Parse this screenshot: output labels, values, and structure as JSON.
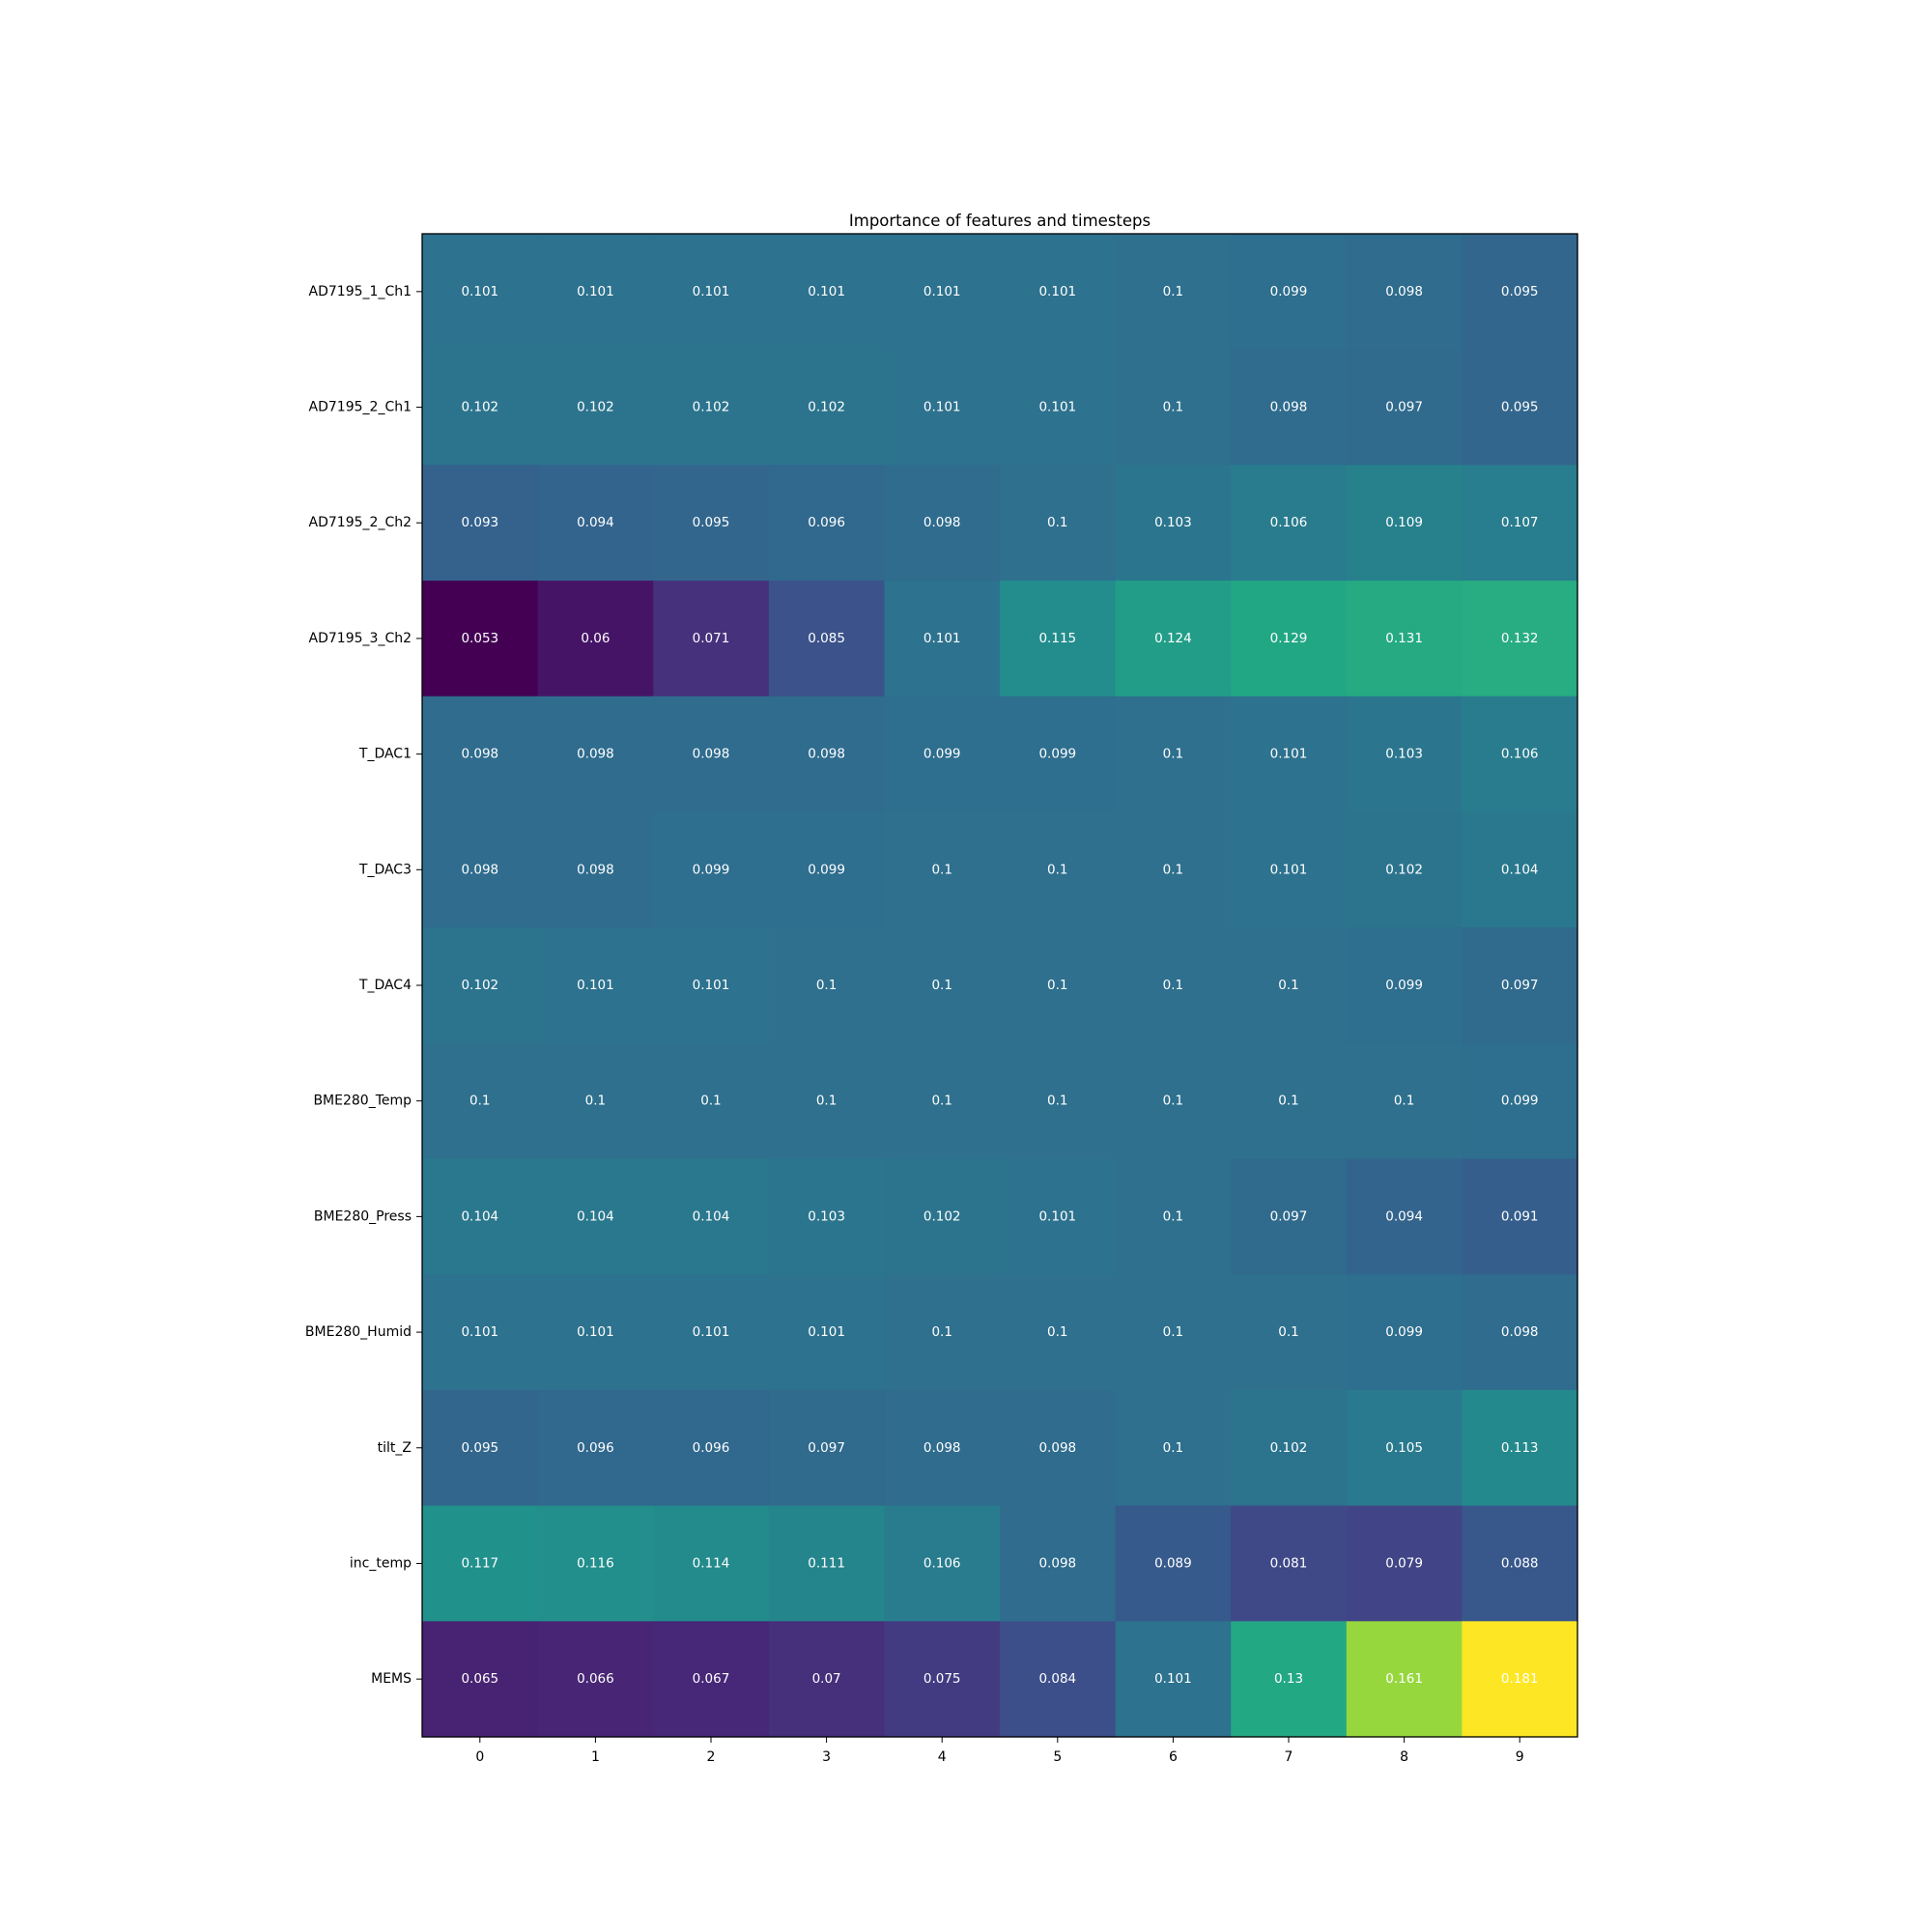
{
  "chart_data": {
    "type": "heatmap",
    "title": "Importance of features and timesteps",
    "xlabel": "",
    "ylabel": "",
    "colormap": "viridis",
    "color_range": [
      0.053,
      0.181
    ],
    "grid": false,
    "x_categories": [
      "0",
      "1",
      "2",
      "3",
      "4",
      "5",
      "6",
      "7",
      "8",
      "9"
    ],
    "y_categories": [
      "AD7195_1_Ch1",
      "AD7195_2_Ch1",
      "AD7195_2_Ch2",
      "AD7195_3_Ch2",
      "T_DAC1",
      "T_DAC3",
      "T_DAC4",
      "BME280_Temp",
      "BME280_Press",
      "BME280_Humid",
      "tilt_Z",
      "inc_temp",
      "MEMS"
    ],
    "values": [
      [
        0.101,
        0.101,
        0.101,
        0.101,
        0.101,
        0.101,
        0.1,
        0.099,
        0.098,
        0.095
      ],
      [
        0.102,
        0.102,
        0.102,
        0.102,
        0.101,
        0.101,
        0.1,
        0.098,
        0.097,
        0.095
      ],
      [
        0.093,
        0.094,
        0.095,
        0.096,
        0.098,
        0.1,
        0.103,
        0.106,
        0.109,
        0.107
      ],
      [
        0.053,
        0.06,
        0.071,
        0.085,
        0.101,
        0.115,
        0.124,
        0.129,
        0.131,
        0.132
      ],
      [
        0.098,
        0.098,
        0.098,
        0.098,
        0.099,
        0.099,
        0.1,
        0.101,
        0.103,
        0.106
      ],
      [
        0.098,
        0.098,
        0.099,
        0.099,
        0.1,
        0.1,
        0.1,
        0.101,
        0.102,
        0.104
      ],
      [
        0.102,
        0.101,
        0.101,
        0.1,
        0.1,
        0.1,
        0.1,
        0.1,
        0.099,
        0.097
      ],
      [
        0.1,
        0.1,
        0.1,
        0.1,
        0.1,
        0.1,
        0.1,
        0.1,
        0.1,
        0.099
      ],
      [
        0.104,
        0.104,
        0.104,
        0.103,
        0.102,
        0.101,
        0.1,
        0.097,
        0.094,
        0.091
      ],
      [
        0.101,
        0.101,
        0.101,
        0.101,
        0.1,
        0.1,
        0.1,
        0.1,
        0.099,
        0.098
      ],
      [
        0.095,
        0.096,
        0.096,
        0.097,
        0.098,
        0.098,
        0.1,
        0.102,
        0.105,
        0.113
      ],
      [
        0.117,
        0.116,
        0.114,
        0.111,
        0.106,
        0.098,
        0.089,
        0.081,
        0.079,
        0.088
      ],
      [
        0.065,
        0.066,
        0.067,
        0.07,
        0.075,
        0.084,
        0.101,
        0.13,
        0.161,
        0.181
      ]
    ]
  }
}
